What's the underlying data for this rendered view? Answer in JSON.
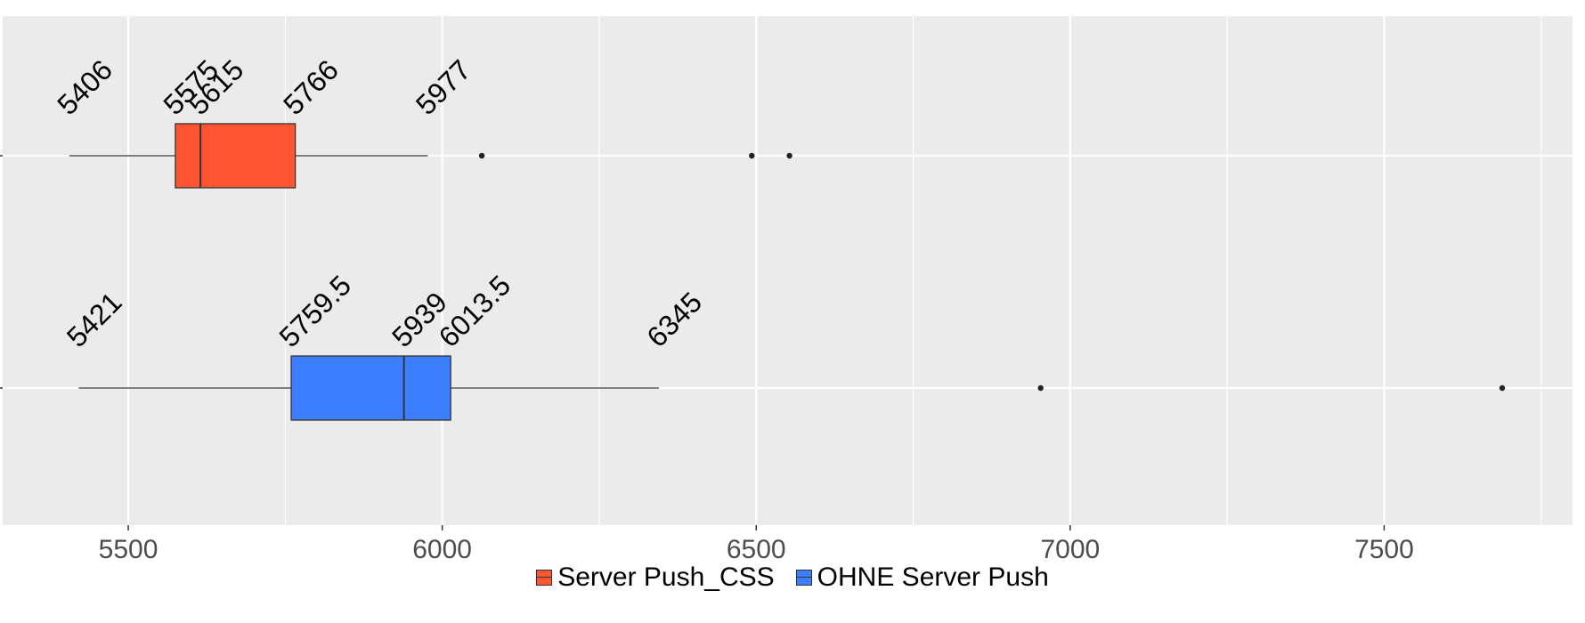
{
  "chart_data": {
    "type": "boxplot",
    "orientation": "horizontal",
    "title": "",
    "xlabel": "",
    "ylabel": "",
    "xlim": [
      5300,
      7800
    ],
    "x_ticks": [
      5500,
      6000,
      6500,
      7000,
      7500
    ],
    "x_tick_labels": [
      "5500",
      "6000",
      "6500",
      "7000",
      "7500"
    ],
    "grid": true,
    "legend_position": "bottom",
    "series": [
      {
        "name": "Server Push_CSS",
        "color": "#FF5533",
        "whisker_low": 5406,
        "q1": 5575,
        "median": 5615,
        "q3": 5766,
        "whisker_high": 5977,
        "outliers": [
          6063,
          6493,
          6553
        ],
        "labels": [
          "5406",
          "5575",
          "5615",
          "5766",
          "5977"
        ]
      },
      {
        "name": "OHNE Server Push",
        "color": "#3D7EFF",
        "whisker_low": 5421,
        "q1": 5759.5,
        "median": 5939,
        "q3": 6013.5,
        "whisker_high": 6345,
        "outliers": [
          6953,
          7688
        ],
        "labels": [
          "5421",
          "5759.5",
          "5939",
          "6013.5",
          "6345"
        ]
      }
    ]
  }
}
